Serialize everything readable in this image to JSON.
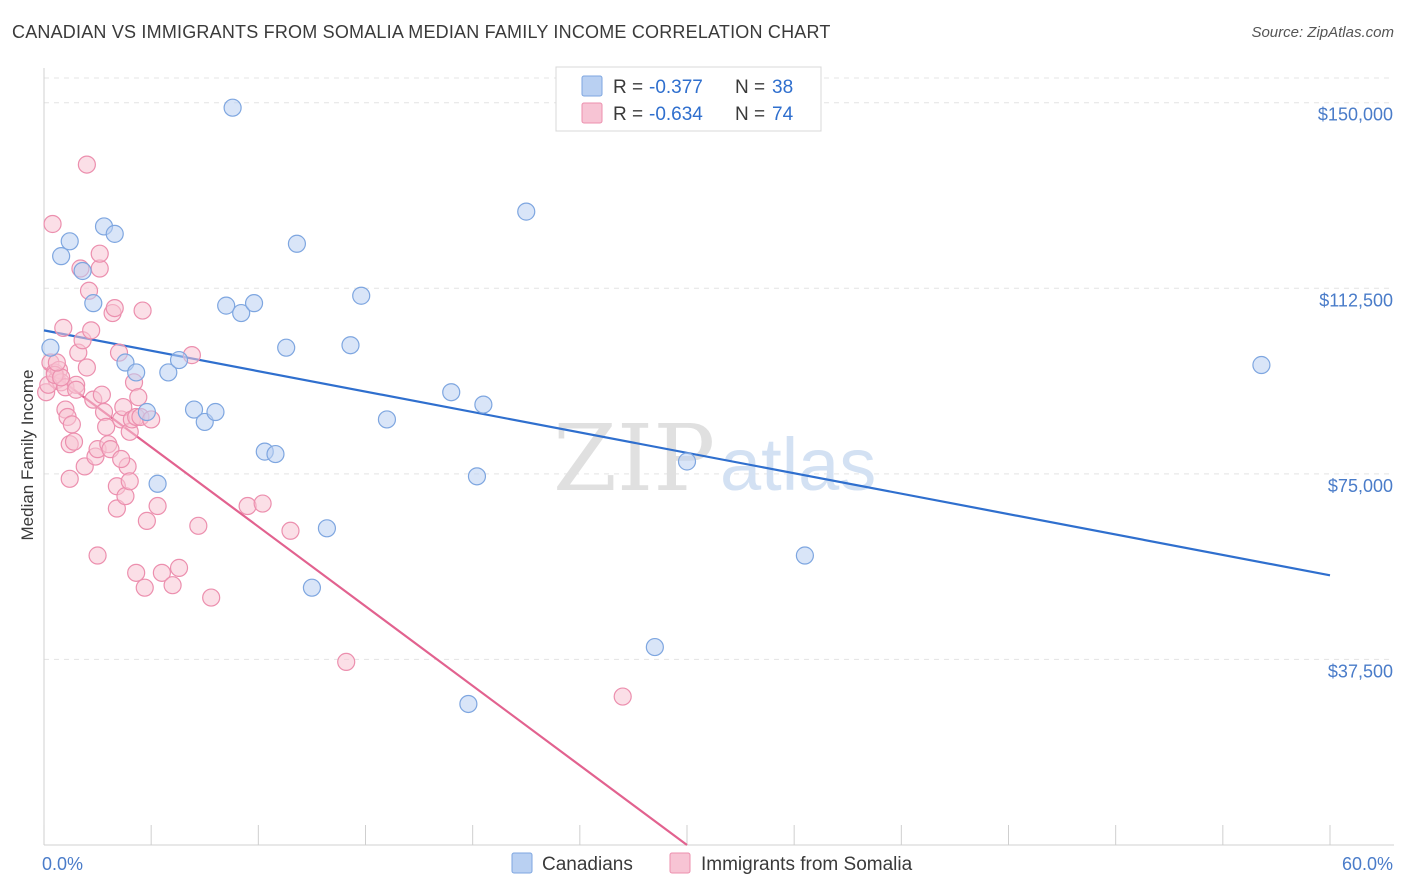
{
  "header": {
    "title": "CANADIAN VS IMMIGRANTS FROM SOMALIA MEDIAN FAMILY INCOME CORRELATION CHART",
    "source": "Source: ZipAtlas.com"
  },
  "watermark": {
    "zip": "ZIP",
    "atlas": "atlas"
  },
  "legend": {
    "rows": [
      {
        "r_label": "R =",
        "r_value": "-0.377",
        "n_label": "N =",
        "n_value": "38",
        "color": "#a9c6f0"
      },
      {
        "r_label": "R =",
        "r_value": "-0.634",
        "n_label": "N =",
        "n_value": "74",
        "color": "#f5b6c9"
      }
    ]
  },
  "colors": {
    "canadians_fill": "#b9d0f2",
    "canadians_stroke": "#7ea6e0",
    "canadians_line": "#2f6fce",
    "somalia_fill": "#f7c4d4",
    "somalia_stroke": "#ec8fae",
    "somalia_line": "#e2628f",
    "grid": "#e4e4e4",
    "axis_text": "#4a7cc9"
  },
  "chart_data": {
    "type": "scatter",
    "title": "CANADIAN VS IMMIGRANTS FROM SOMALIA MEDIAN FAMILY INCOME CORRELATION CHART",
    "xlabel": "",
    "ylabel": "Median Family Income",
    "xlim": [
      0,
      60
    ],
    "ylim": [
      0,
      155000
    ],
    "x_tick_labels": [
      "0.0%",
      "60.0%"
    ],
    "y_ticks": [
      37500,
      75000,
      112500,
      150000
    ],
    "y_tick_labels": [
      "$37,500",
      "$75,000",
      "$112,500",
      "$150,000"
    ],
    "grid": true,
    "legend_position": "top-center",
    "series": [
      {
        "name": "Canadians",
        "R": -0.377,
        "N": 38,
        "trend": [
          [
            0,
            104000
          ],
          [
            60,
            54500
          ]
        ],
        "points": [
          [
            0.3,
            100500
          ],
          [
            0.8,
            119000
          ],
          [
            1.2,
            122000
          ],
          [
            1.8,
            116000
          ],
          [
            2.3,
            109500
          ],
          [
            2.8,
            125000
          ],
          [
            3.3,
            123500
          ],
          [
            3.8,
            97500
          ],
          [
            4.3,
            95500
          ],
          [
            4.8,
            87500
          ],
          [
            5.3,
            73000
          ],
          [
            5.8,
            95500
          ],
          [
            6.3,
            98000
          ],
          [
            7.0,
            88000
          ],
          [
            7.5,
            85500
          ],
          [
            8.0,
            87500
          ],
          [
            8.5,
            109000
          ],
          [
            8.8,
            149000
          ],
          [
            9.2,
            107500
          ],
          [
            9.8,
            109500
          ],
          [
            10.3,
            79500
          ],
          [
            10.8,
            79000
          ],
          [
            11.3,
            100500
          ],
          [
            11.8,
            121500
          ],
          [
            12.5,
            52000
          ],
          [
            13.2,
            64000
          ],
          [
            14.3,
            101000
          ],
          [
            14.8,
            111000
          ],
          [
            16.0,
            86000
          ],
          [
            19.0,
            91500
          ],
          [
            20.2,
            74500
          ],
          [
            20.5,
            89000
          ],
          [
            22.5,
            128000
          ],
          [
            28.5,
            40000
          ],
          [
            19.8,
            28500
          ],
          [
            30.0,
            77500
          ],
          [
            35.5,
            58500
          ],
          [
            56.8,
            97000
          ]
        ]
      },
      {
        "name": "Immigrants from Somalia",
        "R": -0.634,
        "N": 74,
        "trend": [
          [
            0,
            96500
          ],
          [
            30,
            0
          ]
        ],
        "points": [
          [
            0.1,
            91500
          ],
          [
            0.3,
            97500
          ],
          [
            0.4,
            125500
          ],
          [
            0.5,
            95500
          ],
          [
            0.6,
            94000
          ],
          [
            0.7,
            96000
          ],
          [
            0.8,
            93500
          ],
          [
            0.9,
            104500
          ],
          [
            1.0,
            92500
          ],
          [
            1.0,
            88000
          ],
          [
            1.1,
            86500
          ],
          [
            1.2,
            81000
          ],
          [
            1.2,
            74000
          ],
          [
            1.3,
            85000
          ],
          [
            1.4,
            81500
          ],
          [
            1.5,
            93000
          ],
          [
            1.6,
            99500
          ],
          [
            1.7,
            116500
          ],
          [
            1.8,
            102000
          ],
          [
            1.9,
            76500
          ],
          [
            2.0,
            96500
          ],
          [
            2.0,
            137500
          ],
          [
            2.1,
            112000
          ],
          [
            2.2,
            104000
          ],
          [
            2.3,
            90000
          ],
          [
            2.4,
            78500
          ],
          [
            2.5,
            80000
          ],
          [
            2.5,
            58500
          ],
          [
            2.6,
            116500
          ],
          [
            2.6,
            119500
          ],
          [
            2.7,
            91000
          ],
          [
            2.8,
            87500
          ],
          [
            2.9,
            84500
          ],
          [
            3.0,
            81000
          ],
          [
            3.1,
            80000
          ],
          [
            3.2,
            107500
          ],
          [
            3.3,
            108500
          ],
          [
            3.4,
            72500
          ],
          [
            3.4,
            68000
          ],
          [
            3.5,
            99500
          ],
          [
            3.6,
            86000
          ],
          [
            3.7,
            88500
          ],
          [
            3.8,
            70500
          ],
          [
            3.9,
            76500
          ],
          [
            4.0,
            83500
          ],
          [
            4.0,
            73500
          ],
          [
            4.1,
            86000
          ],
          [
            4.2,
            93500
          ],
          [
            4.3,
            86500
          ],
          [
            4.3,
            55000
          ],
          [
            4.4,
            90500
          ],
          [
            4.5,
            86500
          ],
          [
            4.6,
            108000
          ],
          [
            4.7,
            52000
          ],
          [
            4.8,
            65500
          ],
          [
            5.0,
            86000
          ],
          [
            5.3,
            68500
          ],
          [
            5.5,
            55000
          ],
          [
            6.0,
            52500
          ],
          [
            6.3,
            56000
          ],
          [
            6.9,
            99000
          ],
          [
            7.2,
            64500
          ],
          [
            7.8,
            50000
          ],
          [
            9.5,
            68500
          ],
          [
            10.2,
            69000
          ],
          [
            11.5,
            63500
          ],
          [
            14.1,
            37000
          ],
          [
            27.0,
            30000
          ],
          [
            0.2,
            93000
          ],
          [
            0.5,
            95000
          ],
          [
            0.8,
            94500
          ],
          [
            1.5,
            92000
          ],
          [
            0.6,
            97500
          ],
          [
            3.6,
            78000
          ]
        ]
      }
    ]
  },
  "bottom_legend": {
    "canadians": "Canadians",
    "somalia": "Immigrants from Somalia"
  }
}
